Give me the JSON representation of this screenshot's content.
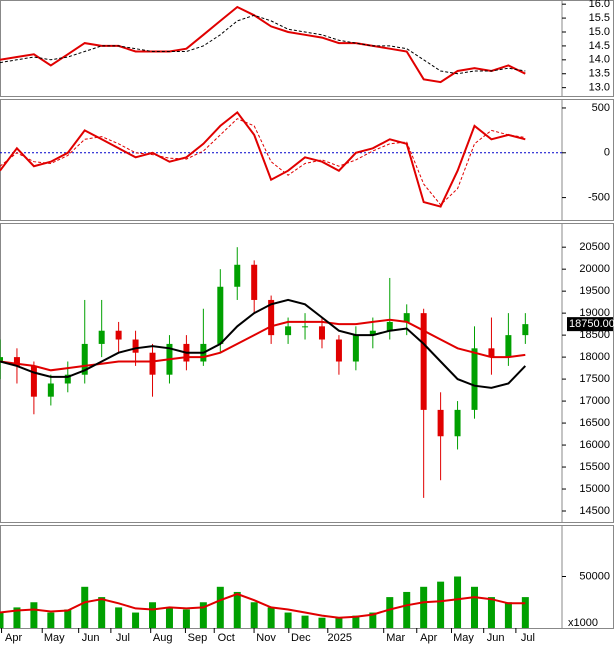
{
  "chart_data": [
    {
      "type": "line",
      "x": [
        0,
        2,
        4,
        6,
        8,
        10,
        12,
        14,
        16,
        18,
        20,
        22,
        24,
        26,
        28,
        30,
        32,
        34,
        36,
        38,
        40,
        42,
        44,
        46,
        48,
        50,
        52,
        54,
        56,
        58,
        60,
        62
      ],
      "xlim": [
        0,
        65
      ],
      "ylim": [
        12.7,
        16.15
      ],
      "yticks": [
        {
          "value": 16,
          "label": "16.0"
        },
        15.5,
        {
          "value": 15,
          "label": "15.0"
        },
        14.5,
        {
          "value": 14,
          "label": "14.0"
        },
        13.5,
        {
          "value": 13,
          "label": "13.0"
        }
      ],
      "series": [
        {
          "color": "#e00000",
          "style": "solid",
          "values": [
            14.0,
            14.1,
            14.2,
            13.8,
            14.2,
            14.6,
            14.5,
            14.5,
            14.3,
            14.3,
            14.3,
            14.4,
            14.9,
            15.4,
            15.9,
            15.6,
            15.2,
            15.0,
            14.9,
            14.8,
            14.6,
            14.6,
            14.5,
            14.4,
            14.3,
            13.3,
            13.2,
            13.6,
            13.7,
            13.6,
            13.8,
            13.5
          ]
        },
        {
          "color": "#000000",
          "style": "dashed",
          "values": [
            13.9,
            14.0,
            14.1,
            14.0,
            14.1,
            14.3,
            14.5,
            14.5,
            14.4,
            14.3,
            14.3,
            14.3,
            14.5,
            14.9,
            15.4,
            15.6,
            15.4,
            15.1,
            15.0,
            14.9,
            14.7,
            14.6,
            14.5,
            14.5,
            14.4,
            14.0,
            13.6,
            13.5,
            13.6,
            13.6,
            13.7,
            13.6
          ]
        }
      ]
    },
    {
      "type": "line",
      "x": [
        0,
        2,
        4,
        6,
        8,
        10,
        12,
        14,
        16,
        18,
        20,
        22,
        24,
        26,
        28,
        30,
        32,
        34,
        36,
        38,
        40,
        42,
        44,
        46,
        48,
        50,
        52,
        54,
        56,
        58,
        60,
        62
      ],
      "xlim": [
        0,
        65
      ],
      "ylim": [
        -750,
        600
      ],
      "yticks": [
        500,
        0,
        -500
      ],
      "hline": 0,
      "hline_color": "#0000cc",
      "series": [
        {
          "color": "#e00000",
          "style": "solid",
          "values": [
            -200,
            50,
            -150,
            -100,
            0,
            250,
            150,
            50,
            -50,
            0,
            -100,
            -50,
            100,
            300,
            450,
            200,
            -300,
            -200,
            -50,
            -100,
            -200,
            0,
            50,
            150,
            100,
            -550,
            -600,
            -200,
            300,
            150,
            200,
            150
          ]
        },
        {
          "color": "#e00000",
          "style": "dashed",
          "values": [
            -150,
            0,
            -100,
            -120,
            -30,
            150,
            180,
            100,
            0,
            -20,
            -60,
            -70,
            20,
            200,
            380,
            300,
            -100,
            -250,
            -120,
            -80,
            -150,
            -80,
            20,
            100,
            120,
            -350,
            -580,
            -400,
            100,
            250,
            200,
            170
          ]
        }
      ]
    },
    {
      "type": "candlestick",
      "x": [
        0,
        2,
        4,
        6,
        8,
        10,
        12,
        14,
        16,
        18,
        20,
        22,
        24,
        26,
        28,
        30,
        32,
        34,
        36,
        38,
        40,
        42,
        44,
        46,
        48,
        50,
        52,
        54,
        56,
        58,
        60,
        62
      ],
      "xlim": [
        0,
        65
      ],
      "ylim": [
        14250,
        21050
      ],
      "yticks": [
        20500,
        20000,
        19500,
        19000,
        18500,
        18000,
        17500,
        17000,
        16500,
        16000,
        15500,
        15000,
        14500
      ],
      "up_color": "#00a000",
      "down_color": "#e00000",
      "open": [
        17900,
        18000,
        17800,
        17100,
        17400,
        17600,
        18300,
        18600,
        18400,
        18100,
        17600,
        18300,
        17900,
        18300,
        19600,
        20100,
        19300,
        18500,
        18700,
        18700,
        18400,
        17900,
        18500,
        18600,
        18800,
        19000,
        16800,
        16200,
        16800,
        18200,
        18000,
        18500
      ],
      "high": [
        18400,
        18200,
        17900,
        17600,
        17900,
        19300,
        19300,
        18800,
        18600,
        18300,
        18500,
        18500,
        19100,
        20000,
        20500,
        20200,
        19400,
        18900,
        19000,
        18900,
        18500,
        18700,
        18900,
        19800,
        19200,
        19100,
        17200,
        17000,
        18700,
        18900,
        19000,
        19000
      ],
      "low": [
        17500,
        17400,
        16700,
        16900,
        17200,
        17400,
        18000,
        18100,
        17800,
        17100,
        17400,
        17700,
        17800,
        18100,
        19300,
        19000,
        18300,
        18300,
        18400,
        18200,
        17600,
        17700,
        18200,
        18400,
        18500,
        14800,
        15200,
        15900,
        16600,
        17600,
        17800,
        18300
      ],
      "close": [
        18000,
        17800,
        17100,
        17400,
        17600,
        18300,
        18600,
        18400,
        18100,
        17600,
        18300,
        17900,
        18300,
        19600,
        20100,
        19300,
        18500,
        18700,
        18700,
        18400,
        17900,
        18500,
        18600,
        18800,
        19000,
        16800,
        16200,
        16800,
        18200,
        18000,
        18500,
        18750
      ],
      "last_price": {
        "value": 18750,
        "label": "18750.00"
      },
      "series": [
        {
          "color": "#e00000",
          "style": "solid",
          "values": [
            17900,
            17850,
            17800,
            17700,
            17750,
            17800,
            17850,
            17900,
            17900,
            17900,
            17950,
            18000,
            18000,
            18100,
            18300,
            18500,
            18700,
            18800,
            18800,
            18800,
            18750,
            18750,
            18800,
            18850,
            18800,
            18600,
            18400,
            18200,
            18100,
            18000,
            18000,
            18050
          ]
        },
        {
          "color": "#000000",
          "style": "solid",
          "values": [
            17900,
            17800,
            17650,
            17550,
            17550,
            17700,
            17900,
            18100,
            18200,
            18250,
            18200,
            18100,
            18100,
            18300,
            18700,
            19000,
            19200,
            19300,
            19200,
            18900,
            18600,
            18500,
            18500,
            18600,
            18650,
            18300,
            17900,
            17500,
            17350,
            17300,
            17400,
            17800
          ]
        }
      ]
    },
    {
      "type": "bar",
      "x": [
        0,
        2,
        4,
        6,
        8,
        10,
        12,
        14,
        16,
        18,
        20,
        22,
        24,
        26,
        28,
        30,
        32,
        34,
        36,
        38,
        40,
        42,
        44,
        46,
        48,
        50,
        52,
        54,
        56,
        58,
        60,
        62
      ],
      "xlim": [
        0,
        65
      ],
      "ylim": [
        0,
        100000
      ],
      "yticks": [
        50000
      ],
      "unit_label": "x1000",
      "color": "#00a000",
      "values": [
        15000,
        20000,
        25000,
        15000,
        18000,
        40000,
        30000,
        20000,
        15000,
        25000,
        20000,
        18000,
        25000,
        40000,
        35000,
        25000,
        20000,
        15000,
        12000,
        10000,
        10000,
        12000,
        15000,
        30000,
        35000,
        40000,
        45000,
        50000,
        40000,
        30000,
        25000,
        30000
      ],
      "series": [
        {
          "color": "#e00000",
          "style": "solid",
          "values": [
            15000,
            17000,
            18000,
            16000,
            17000,
            25000,
            28000,
            24000,
            19000,
            18000,
            20000,
            19000,
            20000,
            27000,
            33000,
            27000,
            20000,
            18000,
            15000,
            12000,
            10000,
            11000,
            13000,
            18000,
            22000,
            25000,
            26000,
            28000,
            30000,
            28000,
            24000,
            24000
          ]
        }
      ],
      "xticks": [
        {
          "value": 1.6,
          "label": "Apr"
        },
        {
          "value": 6.4,
          "label": "May"
        },
        {
          "value": 10.7,
          "label": "Jun"
        },
        {
          "value": 14.5,
          "label": "Jul"
        },
        {
          "value": 19.2,
          "label": "Aug"
        },
        {
          "value": 23.3,
          "label": "Sep"
        },
        {
          "value": 26.7,
          "label": "Oct"
        },
        {
          "value": 31.4,
          "label": "Nov"
        },
        {
          "value": 35.5,
          "label": "Dec"
        },
        {
          "value": 40.1,
          "label": "2025"
        },
        {
          "value": 46.7,
          "label": "Mar"
        },
        {
          "value": 50.6,
          "label": "Apr"
        },
        {
          "value": 54.7,
          "label": "May"
        },
        {
          "value": 58.5,
          "label": "Jun"
        },
        {
          "value": 62.3,
          "label": "Jul"
        }
      ]
    }
  ]
}
